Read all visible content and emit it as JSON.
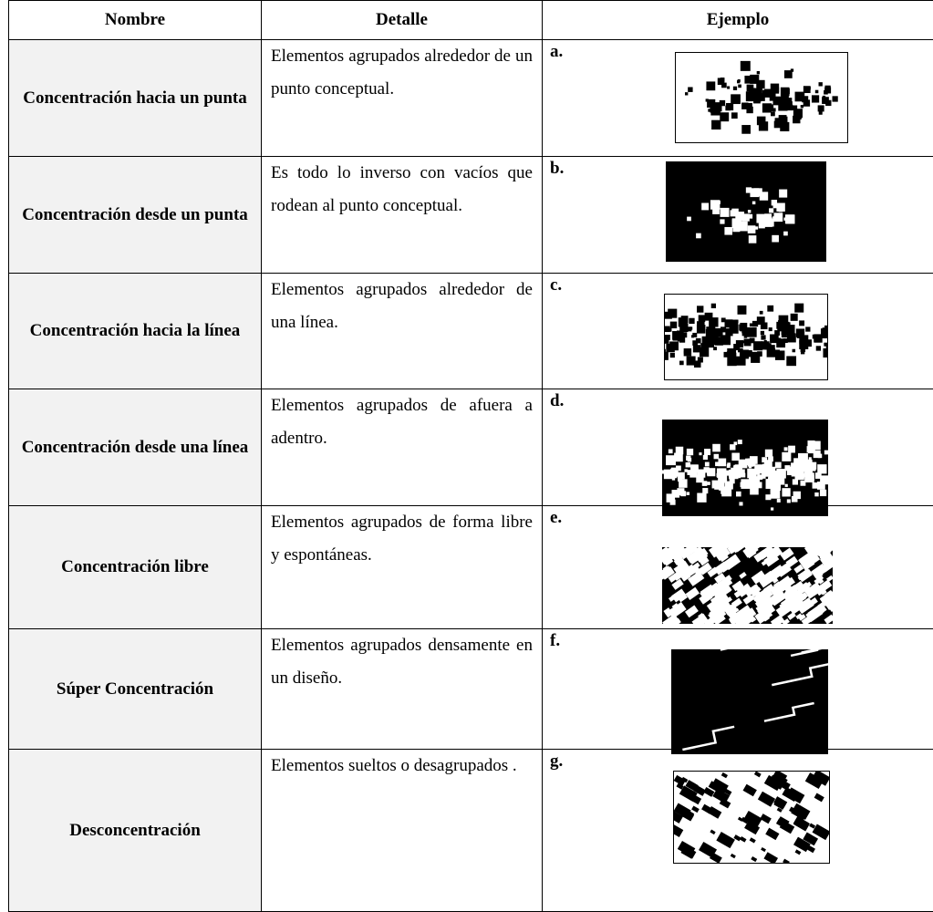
{
  "table": {
    "header": [
      "Nombre",
      "Detalle",
      "Ejemplo"
    ],
    "rows": [
      [
        "Concentración hacia un punta",
        "Elementos agrupados alrededor de un punto conceptual.",
        "a."
      ],
      [
        "Concentración desde un punta",
        "Es todo lo inverso con vacíos que rodean al punto conceptual.",
        "b."
      ],
      [
        "Concentración hacia la línea",
        "Elementos agrupados alrededor de una línea.",
        "c."
      ],
      [
        "Concentración desde una línea",
        "Elementos agrupados de afuera a adentro.",
        "d."
      ],
      [
        "Concentración libre",
        "Elementos agrupados de forma libre y espontáneas.",
        "e."
      ],
      [
        "Súper Concentración",
        "Elementos agrupados densamente en un diseño.",
        "f."
      ],
      [
        "Desconcentración",
        "Elementos sueltos o desagrupados .",
        "g."
      ]
    ]
  }
}
